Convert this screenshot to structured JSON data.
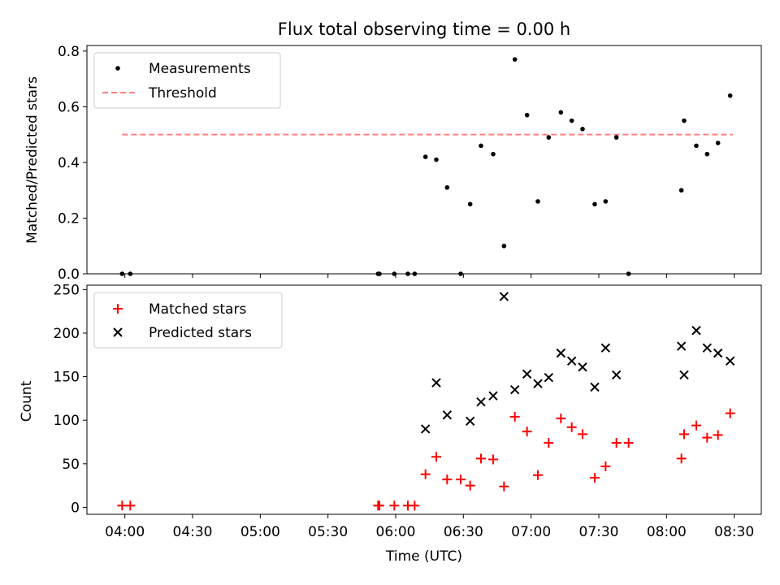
{
  "chart_data": [
    {
      "type": "scatter",
      "title": "Flux total observing time = 0.00 h",
      "ylabel": "Matched/Predicted stars",
      "xlabel": "",
      "ylim": [
        0,
        0.82
      ],
      "yticks": [
        "0.0",
        "0.2",
        "0.4",
        "0.6",
        "0.8"
      ],
      "ytick_values": [
        0,
        0.2,
        0.4,
        0.6,
        0.8
      ],
      "legend": {
        "location": "top-left",
        "entries": [
          "Measurements",
          "Threshold"
        ]
      },
      "threshold": {
        "name": "Threshold",
        "value": 0.5,
        "x_start": 3.98,
        "x_end": 8.49,
        "color": "#ff7f7f"
      },
      "series": [
        {
          "name": "Measurements",
          "color": "#000000",
          "points": [
            [
              3.98,
              0.0
            ],
            [
              4.04,
              0.0
            ],
            [
              5.87,
              0.0
            ],
            [
              5.88,
              0.0
            ],
            [
              5.99,
              0.0
            ],
            [
              6.09,
              0.0
            ],
            [
              6.14,
              0.0
            ],
            [
              6.22,
              0.42
            ],
            [
              6.3,
              0.41
            ],
            [
              6.38,
              0.31
            ],
            [
              6.48,
              0.0
            ],
            [
              6.55,
              0.25
            ],
            [
              6.63,
              0.46
            ],
            [
              6.72,
              0.43
            ],
            [
              6.8,
              0.1
            ],
            [
              6.88,
              0.77
            ],
            [
              6.97,
              0.57
            ],
            [
              7.05,
              0.26
            ],
            [
              7.13,
              0.49
            ],
            [
              7.22,
              0.58
            ],
            [
              7.3,
              0.55
            ],
            [
              7.38,
              0.52
            ],
            [
              7.47,
              0.25
            ],
            [
              7.55,
              0.26
            ],
            [
              7.63,
              0.49
            ],
            [
              7.72,
              0.0
            ],
            [
              8.11,
              0.3
            ],
            [
              8.13,
              0.55
            ],
            [
              8.22,
              0.46
            ],
            [
              8.3,
              0.43
            ],
            [
              8.38,
              0.47
            ],
            [
              8.47,
              0.64
            ]
          ]
        }
      ]
    },
    {
      "type": "scatter",
      "title": "",
      "ylabel": "Count",
      "xlabel": "Time (UTC)",
      "ylim": [
        -8,
        255
      ],
      "yticks": [
        "0",
        "50",
        "100",
        "150",
        "200",
        "250"
      ],
      "ytick_values": [
        0,
        50,
        100,
        150,
        200,
        250
      ],
      "xlim": [
        3.72,
        8.7
      ],
      "xticks": [
        "04:00",
        "04:30",
        "05:00",
        "05:30",
        "06:00",
        "06:30",
        "07:00",
        "07:30",
        "08:00",
        "08:30"
      ],
      "xtick_values": [
        4.0,
        4.5,
        5.0,
        5.5,
        6.0,
        6.5,
        7.0,
        7.5,
        8.0,
        8.5
      ],
      "legend": {
        "location": "top-left",
        "entries": [
          "Matched stars",
          "Predicted stars"
        ]
      },
      "series": [
        {
          "name": "Matched stars",
          "marker": "plus",
          "color": "#ff0000",
          "points": [
            [
              3.98,
              2
            ],
            [
              4.04,
              2
            ],
            [
              5.87,
              2
            ],
            [
              5.88,
              2
            ],
            [
              5.99,
              2
            ],
            [
              6.09,
              2
            ],
            [
              6.14,
              2
            ],
            [
              6.22,
              38
            ],
            [
              6.3,
              58
            ],
            [
              6.38,
              32
            ],
            [
              6.48,
              32
            ],
            [
              6.55,
              25
            ],
            [
              6.63,
              56
            ],
            [
              6.72,
              55
            ],
            [
              6.8,
              24
            ],
            [
              6.88,
              104
            ],
            [
              6.97,
              87
            ],
            [
              7.05,
              37
            ],
            [
              7.13,
              74
            ],
            [
              7.22,
              102
            ],
            [
              7.3,
              92
            ],
            [
              7.38,
              84
            ],
            [
              7.47,
              34
            ],
            [
              7.55,
              47
            ],
            [
              7.63,
              74
            ],
            [
              7.72,
              74
            ],
            [
              8.11,
              56
            ],
            [
              8.13,
              84
            ],
            [
              8.22,
              94
            ],
            [
              8.3,
              80
            ],
            [
              8.38,
              83
            ],
            [
              8.47,
              108
            ]
          ]
        },
        {
          "name": "Predicted stars",
          "marker": "x",
          "color": "#000000",
          "points": [
            [
              6.22,
              90
            ],
            [
              6.3,
              143
            ],
            [
              6.38,
              106
            ],
            [
              6.55,
              99
            ],
            [
              6.63,
              121
            ],
            [
              6.72,
              128
            ],
            [
              6.8,
              242
            ],
            [
              6.88,
              135
            ],
            [
              6.97,
              153
            ],
            [
              7.05,
              142
            ],
            [
              7.13,
              149
            ],
            [
              7.22,
              177
            ],
            [
              7.3,
              168
            ],
            [
              7.38,
              161
            ],
            [
              7.47,
              138
            ],
            [
              7.55,
              183
            ],
            [
              7.63,
              152
            ],
            [
              8.11,
              185
            ],
            [
              8.13,
              152
            ],
            [
              8.22,
              203
            ],
            [
              8.3,
              183
            ],
            [
              8.38,
              177
            ],
            [
              8.47,
              168
            ]
          ]
        }
      ]
    }
  ]
}
